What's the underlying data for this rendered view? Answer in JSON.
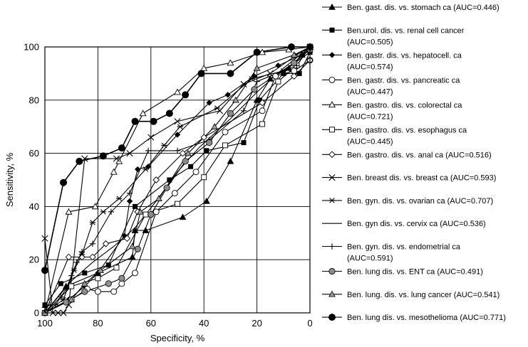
{
  "chart_data": {
    "type": "line",
    "title": "",
    "xlabel": "Specificity, %",
    "ylabel": "Sensitivity, %",
    "xlim": [
      100,
      0
    ],
    "ylim": [
      0,
      100
    ],
    "x_reversed": true,
    "xticks": [
      100,
      80,
      60,
      40,
      20,
      0
    ],
    "yticks": [
      0,
      20,
      40,
      60,
      80,
      100
    ],
    "grid": true,
    "legend_placement": "right",
    "series": [
      {
        "name": "Ben. gast. dis. vs. stomach ca (AUC=0.446)",
        "label_lines": [
          "Ben. gast. dis. vs. stomach ca (AUC=0.446)"
        ],
        "marker": "triangle-filled",
        "points": [
          [
            100,
            0
          ],
          [
            92,
            10
          ],
          [
            80,
            15
          ],
          [
            67,
            21
          ],
          [
            66,
            31
          ],
          [
            62,
            31
          ],
          [
            48,
            36
          ],
          [
            39,
            42
          ],
          [
            30,
            57
          ],
          [
            20,
            80
          ],
          [
            15,
            88
          ],
          [
            8,
            92
          ],
          [
            3,
            97
          ],
          [
            0,
            100
          ]
        ]
      },
      {
        "name": "Ben.urol. dis. vs. renal cell cancer (AUC=0.505)",
        "label_lines": [
          "Ben.urol. dis. vs. renal cell cancer",
          "(AUC=0.505)"
        ],
        "marker": "square-filled",
        "points": [
          [
            100,
            3
          ],
          [
            94,
            11
          ],
          [
            85,
            15
          ],
          [
            76,
            18
          ],
          [
            66,
            40
          ],
          [
            53,
            50
          ],
          [
            45,
            55
          ],
          [
            39,
            61
          ],
          [
            25,
            64
          ],
          [
            19,
            80
          ],
          [
            10,
            90
          ],
          [
            4,
            90
          ],
          [
            0,
            98
          ]
        ]
      },
      {
        "name": "Ben. gastr. dis. vs. hepatocell. ca (AUC=0.574)",
        "label_lines": [
          "Ben. gastr. dis. vs. hepatocell. ca",
          "(AUC=0.574)"
        ],
        "marker": "diamond-filled",
        "points": [
          [
            100,
            0
          ],
          [
            91,
            5
          ],
          [
            85,
            10
          ],
          [
            80,
            15
          ],
          [
            70,
            29
          ],
          [
            68,
            42
          ],
          [
            65,
            54
          ],
          [
            61,
            55
          ],
          [
            50,
            67
          ],
          [
            38,
            79
          ],
          [
            31,
            82
          ],
          [
            21,
            89
          ],
          [
            12,
            93
          ],
          [
            3,
            97
          ],
          [
            0,
            99
          ]
        ]
      },
      {
        "name": "Ben. gastr. dis. vs. pancreatic ca (AUC=0.447)",
        "label_lines": [
          "Ben. gastr. dis. vs. pancreatic ca",
          "(AUC=0.447)"
        ],
        "marker": "circle-open",
        "points": [
          [
            100,
            0
          ],
          [
            90,
            5
          ],
          [
            84,
            9
          ],
          [
            80,
            8
          ],
          [
            74,
            8
          ],
          [
            71,
            11
          ],
          [
            66,
            15
          ],
          [
            58,
            38
          ],
          [
            51,
            45
          ],
          [
            43,
            53
          ],
          [
            32,
            68
          ],
          [
            18,
            76
          ],
          [
            13,
            89
          ],
          [
            6,
            91
          ],
          [
            0,
            95
          ]
        ]
      },
      {
        "name": "Ben. gastro. dis. vs. colorectal ca (AUC=0.721)",
        "label_lines": [
          "Ben. gastro. dis. vs. colorectal ca",
          "(AUC=0.721)"
        ],
        "marker": "triangle-open",
        "points": [
          [
            100,
            0
          ],
          [
            91,
            38
          ],
          [
            81,
            40
          ],
          [
            74,
            53
          ],
          [
            72,
            57
          ],
          [
            63,
            75
          ],
          [
            50,
            83
          ],
          [
            40,
            92
          ],
          [
            30,
            94
          ],
          [
            18,
            98
          ],
          [
            8,
            99
          ],
          [
            0,
            100
          ]
        ]
      },
      {
        "name": "Ben. gastro. dis. vs. esophagus ca (AUC=0.445)",
        "label_lines": [
          "Ben. gastro. dis. vs. esophagus ca",
          "(AUC=0.445)"
        ],
        "marker": "square-open",
        "points": [
          [
            100,
            0
          ],
          [
            90,
            10
          ],
          [
            80,
            13
          ],
          [
            73,
            17
          ],
          [
            62,
            37
          ],
          [
            50,
            41
          ],
          [
            40,
            51
          ],
          [
            32,
            63
          ],
          [
            18,
            71
          ],
          [
            12,
            87
          ],
          [
            5,
            93
          ],
          [
            0,
            100
          ]
        ]
      },
      {
        "name": "Ben. gastro. dis. vs. anal ca (AUC=0.516)",
        "label_lines": [
          "Ben. gastro. dis. vs. anal ca (AUC=0.516)"
        ],
        "marker": "diamond-open",
        "points": [
          [
            100,
            0
          ],
          [
            91,
            21
          ],
          [
            86,
            21
          ],
          [
            82,
            21
          ],
          [
            77,
            26
          ],
          [
            69,
            28
          ],
          [
            65,
            38
          ],
          [
            58,
            50
          ],
          [
            48,
            60
          ],
          [
            40,
            66
          ],
          [
            18,
            79
          ],
          [
            6,
            89
          ],
          [
            0,
            95
          ]
        ]
      },
      {
        "name": "Ben. breast dis. vs. breast ca (AUC=0.593)",
        "label_lines": [
          "Ben. breast dis. vs. breast ca (AUC=0.593)"
        ],
        "marker": "x",
        "points": [
          [
            100,
            28
          ],
          [
            97,
            0
          ],
          [
            95,
            0
          ],
          [
            93,
            0
          ],
          [
            91,
            3
          ],
          [
            85,
            58
          ],
          [
            73,
            58
          ],
          [
            68,
            60
          ],
          [
            60,
            66
          ],
          [
            50,
            72
          ],
          [
            34,
            76
          ],
          [
            25,
            86
          ],
          [
            15,
            90
          ],
          [
            5,
            97
          ],
          [
            0,
            100
          ]
        ]
      },
      {
        "name": "Ben. gyn. dis. vs. ovarian ca (AUC=0.707)",
        "label_lines": [
          "Ben. gyn. dis. vs. ovarian ca (AUC=0.707)"
        ],
        "marker": "asterisk",
        "points": [
          [
            100,
            0
          ],
          [
            93,
            5
          ],
          [
            89,
            16
          ],
          [
            86,
            22
          ],
          [
            82,
            34
          ],
          [
            78,
            38
          ],
          [
            72,
            43
          ],
          [
            62,
            54
          ],
          [
            55,
            63
          ],
          [
            49,
            70
          ],
          [
            35,
            77
          ],
          [
            22,
            88
          ],
          [
            10,
            91
          ],
          [
            0,
            98
          ]
        ]
      },
      {
        "name": "Ben. gyn dis. vs. cervix ca (AUC=0.536)",
        "label_lines": [
          "Ben. gyn dis. vs. cervix ca (AUC=0.536)"
        ],
        "marker": "none",
        "points": [
          [
            100,
            0
          ],
          [
            90,
            12
          ],
          [
            82,
            19
          ],
          [
            74,
            25
          ],
          [
            66,
            32
          ],
          [
            58,
            42
          ],
          [
            50,
            53
          ],
          [
            42,
            62
          ],
          [
            30,
            73
          ],
          [
            20,
            83
          ],
          [
            10,
            92
          ],
          [
            0,
            100
          ]
        ]
      },
      {
        "name": "Ben. gyn. dis. vs. endometrial ca (AUC=0.591)",
        "label_lines": [
          "Ben. gyn. dis. vs. endometrial ca",
          "(AUC=0.591)"
        ],
        "marker": "plus",
        "points": [
          [
            100,
            2
          ],
          [
            98,
            3
          ],
          [
            96,
            3
          ],
          [
            94,
            6
          ],
          [
            92,
            9
          ],
          [
            90,
            14
          ],
          [
            88,
            19
          ],
          [
            86,
            23
          ],
          [
            82,
            26
          ],
          [
            75,
            38
          ],
          [
            68,
            45
          ],
          [
            61,
            61
          ],
          [
            50,
            61
          ],
          [
            38,
            65
          ],
          [
            25,
            76
          ],
          [
            20,
            87
          ],
          [
            5,
            93
          ],
          [
            0,
            100
          ]
        ]
      },
      {
        "name": "Ben. lung dis. vs. ENT ca (AUC=0.491)",
        "label_lines": [
          "Ben. lung dis. vs. ENT ca (AUC=0.491)"
        ],
        "marker": "circle-gray",
        "points": [
          [
            100,
            0
          ],
          [
            92,
            4
          ],
          [
            85,
            8
          ],
          [
            76,
            11
          ],
          [
            71,
            13
          ],
          [
            65,
            24
          ],
          [
            60,
            37
          ],
          [
            54,
            47
          ],
          [
            47,
            57
          ],
          [
            38,
            64
          ],
          [
            30,
            75
          ],
          [
            21,
            84
          ],
          [
            6,
            94
          ],
          [
            0,
            99
          ]
        ]
      },
      {
        "name": "Ben. lung. dis. vs. lung cancer (AUC=0.541)",
        "label_lines": [
          "Ben. lung. dis. vs. lung cancer (AUC=0.541)"
        ],
        "marker": "triangle-gray",
        "points": [
          [
            100,
            0
          ],
          [
            90,
            5
          ],
          [
            85,
            11
          ],
          [
            79,
            16
          ],
          [
            67,
            25
          ],
          [
            64,
            38
          ],
          [
            57,
            43
          ],
          [
            46,
            60
          ],
          [
            36,
            70
          ],
          [
            28,
            80
          ],
          [
            20,
            92
          ],
          [
            6,
            97
          ],
          [
            0,
            100
          ]
        ]
      },
      {
        "name": "Ben. lung dis. vs. mesothelioma (AUC=0.771)",
        "label_lines": [
          "Ben. lung dis. vs. mesothelioma (AUC=0.771)"
        ],
        "marker": "circle-filled",
        "points": [
          [
            100,
            16
          ],
          [
            93,
            49
          ],
          [
            87,
            57
          ],
          [
            78,
            59
          ],
          [
            71,
            62
          ],
          [
            66,
            72
          ],
          [
            59,
            72
          ],
          [
            53,
            75
          ],
          [
            47,
            82
          ],
          [
            41,
            90
          ],
          [
            30,
            90
          ],
          [
            20,
            98
          ],
          [
            7,
            100
          ],
          [
            0,
            100
          ]
        ]
      }
    ]
  }
}
